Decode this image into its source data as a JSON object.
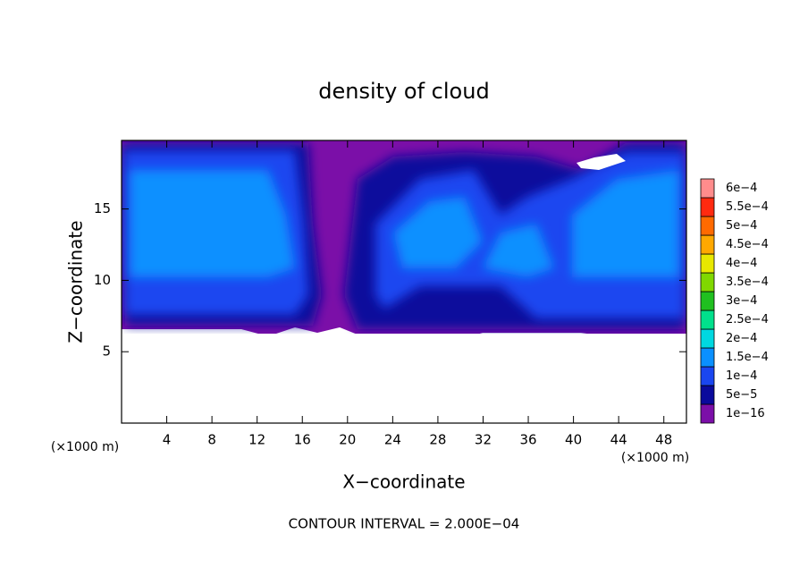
{
  "chart_data": {
    "type": "contour",
    "title": "density of cloud",
    "xlabel": "X−coordinate",
    "ylabel": "Z−coordinate",
    "x_unit_label": "(×1000 m)",
    "y_unit_label": "(×1000 m)",
    "annotation": "CONTOUR INTERVAL = 2.000E−04",
    "xlim": [
      0,
      50
    ],
    "ylim": [
      0,
      19.8
    ],
    "xticks": [
      4,
      8,
      12,
      16,
      20,
      24,
      28,
      32,
      36,
      40,
      44,
      48
    ],
    "yticks": [
      5,
      10,
      15
    ],
    "colorbar": {
      "levels": [
        {
          "value": 1e-16,
          "label": "1e−16"
        },
        {
          "value": 5e-05,
          "label": "5e−5"
        },
        {
          "value": 0.0001,
          "label": "1e−4"
        },
        {
          "value": 0.00015,
          "label": "1.5e−4"
        },
        {
          "value": 0.0002,
          "label": "2e−4"
        },
        {
          "value": 0.00025,
          "label": "2.5e−4"
        },
        {
          "value": 0.0003,
          "label": "3e−4"
        },
        {
          "value": 0.00035,
          "label": "3.5e−4"
        },
        {
          "value": 0.0004,
          "label": "4e−4"
        },
        {
          "value": 0.00045,
          "label": "4.5e−4"
        },
        {
          "value": 0.0005,
          "label": "5e−4"
        },
        {
          "value": 0.00055,
          "label": "5.5e−4"
        },
        {
          "value": 0.0006,
          "label": "6e−4"
        }
      ],
      "colors": [
        "#7b0fa8",
        "#0a0a9c",
        "#1a46f0",
        "#0a90ff",
        "#00d8e0",
        "#00e08c",
        "#20c020",
        "#80d800",
        "#e8e800",
        "#ffa800",
        "#ff6a00",
        "#ff2a10",
        "#ff8c8c"
      ]
    }
  }
}
